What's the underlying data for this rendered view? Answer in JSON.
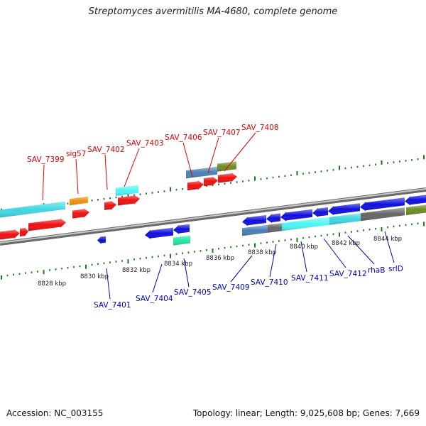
{
  "title": "Streptomyces avermitilis MA-4680, complete genome",
  "footer": {
    "accession": "Accession: NC_003155",
    "stats": "Topology: linear; Length: 9,025,608 bp; Genes: 7,669"
  },
  "colors": {
    "forward_gene": "#ee1111",
    "reverse_gene": "#1010dd",
    "backbone": "#8a8a8a",
    "tick": "#1b7a1b",
    "label_forward": "#e00000",
    "label_reverse": "#0000c0",
    "cyan": "#3fd6e0",
    "light_cyan": "#4df5f5",
    "orange": "#f09010",
    "steel_blue": "#4a80b5",
    "olive": "#6e8c25",
    "dark_gray": "#666666",
    "mint": "#20e8a0"
  },
  "scale_labels": [
    "8828 kbp",
    "8830 kbp",
    "8832 kbp",
    "8834 kbp",
    "8836 kbp",
    "8838 kbp",
    "8840 kbp",
    "8842 kbp",
    "8844 kbp"
  ],
  "forward_labels": [
    "SAV_7399",
    "sig57",
    "SAV_7402",
    "SAV_7403",
    "SAV_7406",
    "SAV_7407",
    "SAV_7408"
  ],
  "reverse_labels": [
    "SAV_7401",
    "SAV_7404",
    "SAV_7405",
    "SAV_7409",
    "SAV_7410",
    "SAV_7411",
    "SAV_7412",
    "rhaB",
    "srlD"
  ]
}
